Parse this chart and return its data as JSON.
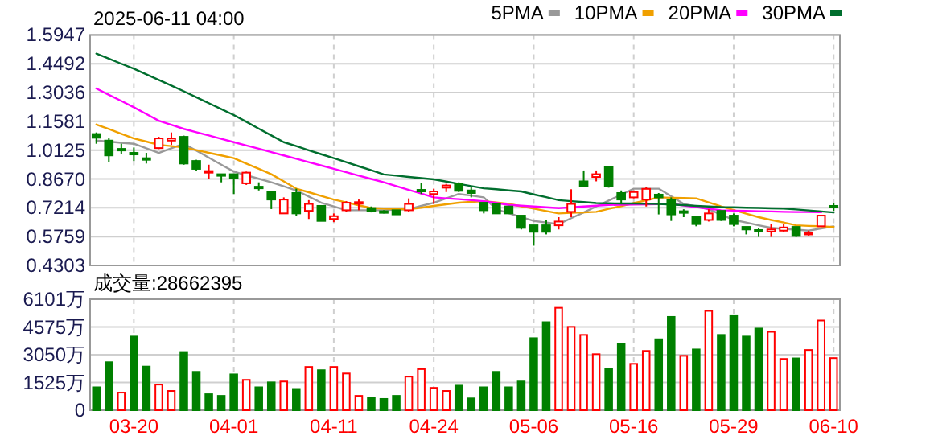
{
  "chart_data": [
    {
      "type": "candlestick",
      "title": "2025-06-11 04:00",
      "categories": [
        null,
        null,
        null,
        null,
        null,
        null,
        null,
        null,
        null,
        null,
        null,
        null,
        null,
        null,
        null,
        null,
        null,
        null,
        null,
        null,
        null,
        null,
        null,
        null,
        null,
        null,
        null,
        null,
        null,
        null,
        null,
        null,
        null,
        null,
        null,
        null,
        null,
        null,
        null,
        null,
        null,
        null,
        null,
        null,
        null,
        null,
        null,
        null,
        null,
        null,
        null,
        null,
        null,
        null,
        null,
        null,
        null,
        null,
        null,
        null
      ],
      "ohlc": [
        [
          1.094,
          1.102,
          1.045,
          1.075
        ],
        [
          1.061,
          1.072,
          0.953,
          0.986
        ],
        [
          1.019,
          1.045,
          0.991,
          1.017
        ],
        [
          0.999,
          1.026,
          0.958,
          0.991
        ],
        [
          0.972,
          0.999,
          0.945,
          0.964
        ],
        [
          1.023,
          1.08,
          1.018,
          1.072
        ],
        [
          1.061,
          1.102,
          1.039,
          1.072
        ],
        [
          1.08,
          1.086,
          0.939,
          0.945
        ],
        [
          0.958,
          0.964,
          0.91,
          0.918
        ],
        [
          0.902,
          0.939,
          0.869,
          0.907
        ],
        [
          0.891,
          0.891,
          0.85,
          0.883
        ],
        [
          0.891,
          0.891,
          0.791,
          0.872
        ],
        [
          0.845,
          0.904,
          0.837,
          0.899
        ],
        [
          0.828,
          0.85,
          0.809,
          0.82
        ],
        [
          0.804,
          0.804,
          0.715,
          0.763
        ],
        [
          0.693,
          0.774,
          0.693,
          0.763
        ],
        [
          0.796,
          0.818,
          0.682,
          0.693
        ],
        [
          0.706,
          0.76,
          0.665,
          0.741
        ],
        [
          0.731,
          0.731,
          0.655,
          0.655
        ],
        [
          0.665,
          0.693,
          0.649,
          0.679
        ],
        [
          0.709,
          0.755,
          0.701,
          0.747
        ],
        [
          0.744,
          0.763,
          0.709,
          0.75
        ],
        [
          0.72,
          0.728,
          0.698,
          0.706
        ],
        [
          0.704,
          0.709,
          0.693,
          0.698
        ],
        [
          0.709,
          0.709,
          0.688,
          0.688
        ],
        [
          0.709,
          0.769,
          0.701,
          0.741
        ],
        [
          0.812,
          0.845,
          0.791,
          0.804
        ],
        [
          0.791,
          0.818,
          0.741,
          0.804
        ],
        [
          0.823,
          0.842,
          0.801,
          0.834
        ],
        [
          0.842,
          0.85,
          0.801,
          0.807
        ],
        [
          0.809,
          0.828,
          0.774,
          0.796
        ],
        [
          0.747,
          0.747,
          0.693,
          0.709
        ],
        [
          0.741,
          0.741,
          0.693,
          0.693
        ],
        [
          0.728,
          0.728,
          0.693,
          0.693
        ],
        [
          0.682,
          0.682,
          0.612,
          0.62
        ],
        [
          0.633,
          0.633,
          0.53,
          0.6
        ],
        [
          0.633,
          0.66,
          0.587,
          0.6
        ],
        [
          0.633,
          0.674,
          0.612,
          0.652
        ],
        [
          0.701,
          0.815,
          0.674,
          0.741
        ],
        [
          0.855,
          0.91,
          0.831,
          0.831
        ],
        [
          0.877,
          0.91,
          0.855,
          0.891
        ],
        [
          0.926,
          0.926,
          0.823,
          0.831
        ],
        [
          0.796,
          0.809,
          0.741,
          0.763
        ],
        [
          0.774,
          0.809,
          0.769,
          0.801
        ],
        [
          0.763,
          0.828,
          0.728,
          0.817
        ],
        [
          0.788,
          0.796,
          0.688,
          0.774
        ],
        [
          0.763,
          0.774,
          0.655,
          0.688
        ],
        [
          0.704,
          0.714,
          0.674,
          0.698
        ],
        [
          0.674,
          0.674,
          0.628,
          0.639
        ],
        [
          0.66,
          0.714,
          0.652,
          0.693
        ],
        [
          0.706,
          0.706,
          0.655,
          0.66
        ],
        [
          0.682,
          0.693,
          0.628,
          0.639
        ],
        [
          0.625,
          0.625,
          0.587,
          0.612
        ],
        [
          0.609,
          0.62,
          0.574,
          0.604
        ],
        [
          0.601,
          0.639,
          0.574,
          0.612
        ],
        [
          0.606,
          0.639,
          0.601,
          0.622
        ],
        [
          0.625,
          0.625,
          0.574,
          0.579
        ],
        [
          0.587,
          0.606,
          0.579,
          0.595
        ],
        [
          0.628,
          0.682,
          0.628,
          0.682
        ],
        [
          0.731,
          0.747,
          0.706,
          0.723
        ]
      ],
      "colors": [
        "#008000",
        "#008000",
        "#008000",
        "#008000",
        "#008000",
        "#ff0000",
        "#ff0000",
        "#008000",
        "#008000",
        "#ff0000",
        "#008000",
        "#008000",
        "#ff0000",
        "#008000",
        "#008000",
        "#ff0000",
        "#008000",
        "#ff0000",
        "#008000",
        "#ff0000",
        "#ff0000",
        "#ff0000",
        "#008000",
        "#008000",
        "#008000",
        "#ff0000",
        "#008000",
        "#ff0000",
        "#ff0000",
        "#008000",
        "#008000",
        "#008000",
        "#008000",
        "#008000",
        "#008000",
        "#008000",
        "#008000",
        "#ff0000",
        "#ff0000",
        "#008000",
        "#ff0000",
        "#008000",
        "#008000",
        "#ff0000",
        "#ff0000",
        "#008000",
        "#008000",
        "#008000",
        "#008000",
        "#ff0000",
        "#008000",
        "#008000",
        "#008000",
        "#008000",
        "#ff0000",
        "#ff0000",
        "#008000",
        "#ff0000",
        "#ff0000",
        "#008000"
      ],
      "series": [
        {
          "name": "5PMA",
          "type": "line",
          "color": "#999999",
          "values": [
            1.061,
            1.056,
            1.05,
            1.045,
            1.022,
            0.999,
            1.022,
            1.045,
            1.01,
            0.975,
            0.939,
            0.904,
            0.886,
            0.868,
            0.85,
            0.83,
            0.809,
            0.778,
            0.747,
            0.728,
            0.709,
            0.709,
            0.709,
            0.709,
            0.712,
            0.714,
            0.731,
            0.747,
            0.769,
            0.791,
            0.783,
            0.774,
            0.714,
            0.694,
            0.675,
            0.655,
            0.647,
            0.639,
            0.669,
            0.698,
            0.728,
            0.758,
            0.788,
            0.818,
            0.818,
            0.818,
            0.78,
            0.741,
            0.728,
            0.714,
            0.687,
            0.66,
            0.647,
            0.633,
            0.62,
            0.615,
            0.611,
            0.606,
            0.617,
            0.628
          ]
        },
        {
          "name": "10PMA",
          "type": "line",
          "color": "#f0a000",
          "values": [
            1.142,
            1.119,
            1.095,
            1.072,
            1.056,
            1.039,
            1.033,
            1.026,
            1.013,
            0.999,
            0.986,
            0.972,
            0.945,
            0.918,
            0.891,
            0.855,
            0.818,
            0.8,
            0.781,
            0.763,
            0.749,
            0.734,
            0.72,
            0.718,
            0.716,
            0.714,
            0.722,
            0.731,
            0.739,
            0.747,
            0.751,
            0.755,
            0.748,
            0.741,
            0.729,
            0.717,
            0.705,
            0.693,
            0.696,
            0.698,
            0.701,
            0.716,
            0.73,
            0.745,
            0.759,
            0.774,
            0.772,
            0.771,
            0.769,
            0.749,
            0.728,
            0.71,
            0.692,
            0.674,
            0.66,
            0.647,
            0.633,
            0.63,
            0.628,
            0.625
          ]
        },
        {
          "name": "20PMA",
          "type": "line",
          "color": "#ff00ff",
          "values": [
            1.324,
            1.292,
            1.261,
            1.229,
            1.195,
            1.161,
            1.141,
            1.12,
            1.103,
            1.087,
            1.07,
            1.053,
            1.036,
            1.02,
            1.003,
            0.986,
            0.969,
            0.952,
            0.935,
            0.918,
            0.901,
            0.884,
            0.867,
            0.85,
            0.831,
            0.812,
            0.793,
            0.774,
            0.769,
            0.765,
            0.76,
            0.755,
            0.746,
            0.736,
            0.732,
            0.728,
            0.724,
            0.72,
            0.724,
            0.728,
            0.732,
            0.736,
            0.737,
            0.738,
            0.739,
            0.74,
            0.741,
            0.733,
            0.725,
            0.717,
            0.709,
            0.707,
            0.706,
            0.704,
            0.703,
            0.701,
            0.7,
            0.7,
            0.699,
            null
          ]
        },
        {
          "name": "30PMA",
          "type": "line",
          "color": "#006e2e",
          "values": [
            1.5,
            1.475,
            1.449,
            1.424,
            1.396,
            1.367,
            1.339,
            1.31,
            1.28,
            1.25,
            1.22,
            1.19,
            1.156,
            1.121,
            1.087,
            1.053,
            1.033,
            1.012,
            0.992,
            0.972,
            0.952,
            0.931,
            0.911,
            0.89,
            0.884,
            0.877,
            0.871,
            0.865,
            0.854,
            0.842,
            0.831,
            0.82,
            0.815,
            0.809,
            0.804,
            0.789,
            0.775,
            0.76,
            0.755,
            0.75,
            0.745,
            0.744,
            0.743,
            0.743,
            0.742,
            0.741,
            0.738,
            0.735,
            0.731,
            0.728,
            0.725,
            0.724,
            0.722,
            0.721,
            0.719,
            0.718,
            0.713,
            0.708,
            0.703,
            0.698
          ]
        }
      ],
      "ylim": [
        0.4303,
        1.5947
      ],
      "yticks": [
        0.4303,
        0.5759,
        0.7214,
        {
          "value": 0.867,
          "label": "0.8670"
        },
        1.0125,
        1.1581,
        1.3036,
        1.4492,
        1.5947
      ],
      "grid": true,
      "legend": "top right",
      "tick_labels": "y"
    },
    {
      "type": "bar",
      "title": "成交量:28662395",
      "categories": [
        null,
        null,
        null,
        "03-20",
        null,
        null,
        null,
        null,
        null,
        null,
        null,
        "04-01",
        null,
        null,
        null,
        null,
        null,
        null,
        null,
        "04-11",
        null,
        null,
        null,
        null,
        null,
        null,
        null,
        "04-24",
        null,
        null,
        null,
        null,
        null,
        null,
        null,
        "05-06",
        null,
        null,
        null,
        null,
        null,
        null,
        null,
        "05-16",
        null,
        null,
        null,
        null,
        null,
        null,
        null,
        "05-29",
        null,
        null,
        null,
        null,
        null,
        null,
        null,
        "06-10"
      ],
      "values": [
        1260,
        2640,
        970,
        4050,
        2400,
        1410,
        1060,
        3200,
        2110,
        880,
        790,
        1970,
        1670,
        1260,
        1530,
        1580,
        1170,
        2380,
        2200,
        2380,
        2020,
        790,
        700,
        620,
        790,
        1850,
        2260,
        1230,
        1060,
        1350,
        650,
        1260,
        2110,
        1260,
        1580,
        3960,
        4840,
        5630,
        4580,
        4140,
        3080,
        2290,
        3640,
        2550,
        3260,
        3900,
        5130,
        2990,
        3340,
        5460,
        4140,
        5220,
        4050,
        4490,
        4310,
        2820,
        2850,
        3310,
        4930,
        2866
      ],
      "colors": [
        "#008000",
        "#008000",
        "#ff0000",
        "#008000",
        "#008000",
        "#ff0000",
        "#ff0000",
        "#008000",
        "#008000",
        "#008000",
        "#008000",
        "#008000",
        "#ff0000",
        "#008000",
        "#008000",
        "#ff0000",
        "#008000",
        "#ff0000",
        "#008000",
        "#ff0000",
        "#ff0000",
        "#ff0000",
        "#008000",
        "#008000",
        "#008000",
        "#ff0000",
        "#ff0000",
        "#ff0000",
        "#ff0000",
        "#008000",
        "#008000",
        "#008000",
        "#008000",
        "#008000",
        "#008000",
        "#008000",
        "#008000",
        "#ff0000",
        "#ff0000",
        "#ff0000",
        "#ff0000",
        "#008000",
        "#008000",
        "#ff0000",
        "#ff0000",
        "#008000",
        "#008000",
        "#ff0000",
        "#008000",
        "#ff0000",
        "#008000",
        "#008000",
        "#008000",
        "#008000",
        "#ff0000",
        "#ff0000",
        "#008000",
        "#ff0000",
        "#ff0000",
        "#ff0000"
      ],
      "ylim": [
        0,
        6101
      ],
      "yticks": [
        0,
        {
          "value": 1525,
          "label": "1525万"
        },
        {
          "value": 3050,
          "label": "3050万"
        },
        {
          "value": 4575,
          "label": "4575万"
        },
        {
          "value": 6101,
          "label": "6101万"
        }
      ],
      "grid": true
    }
  ]
}
